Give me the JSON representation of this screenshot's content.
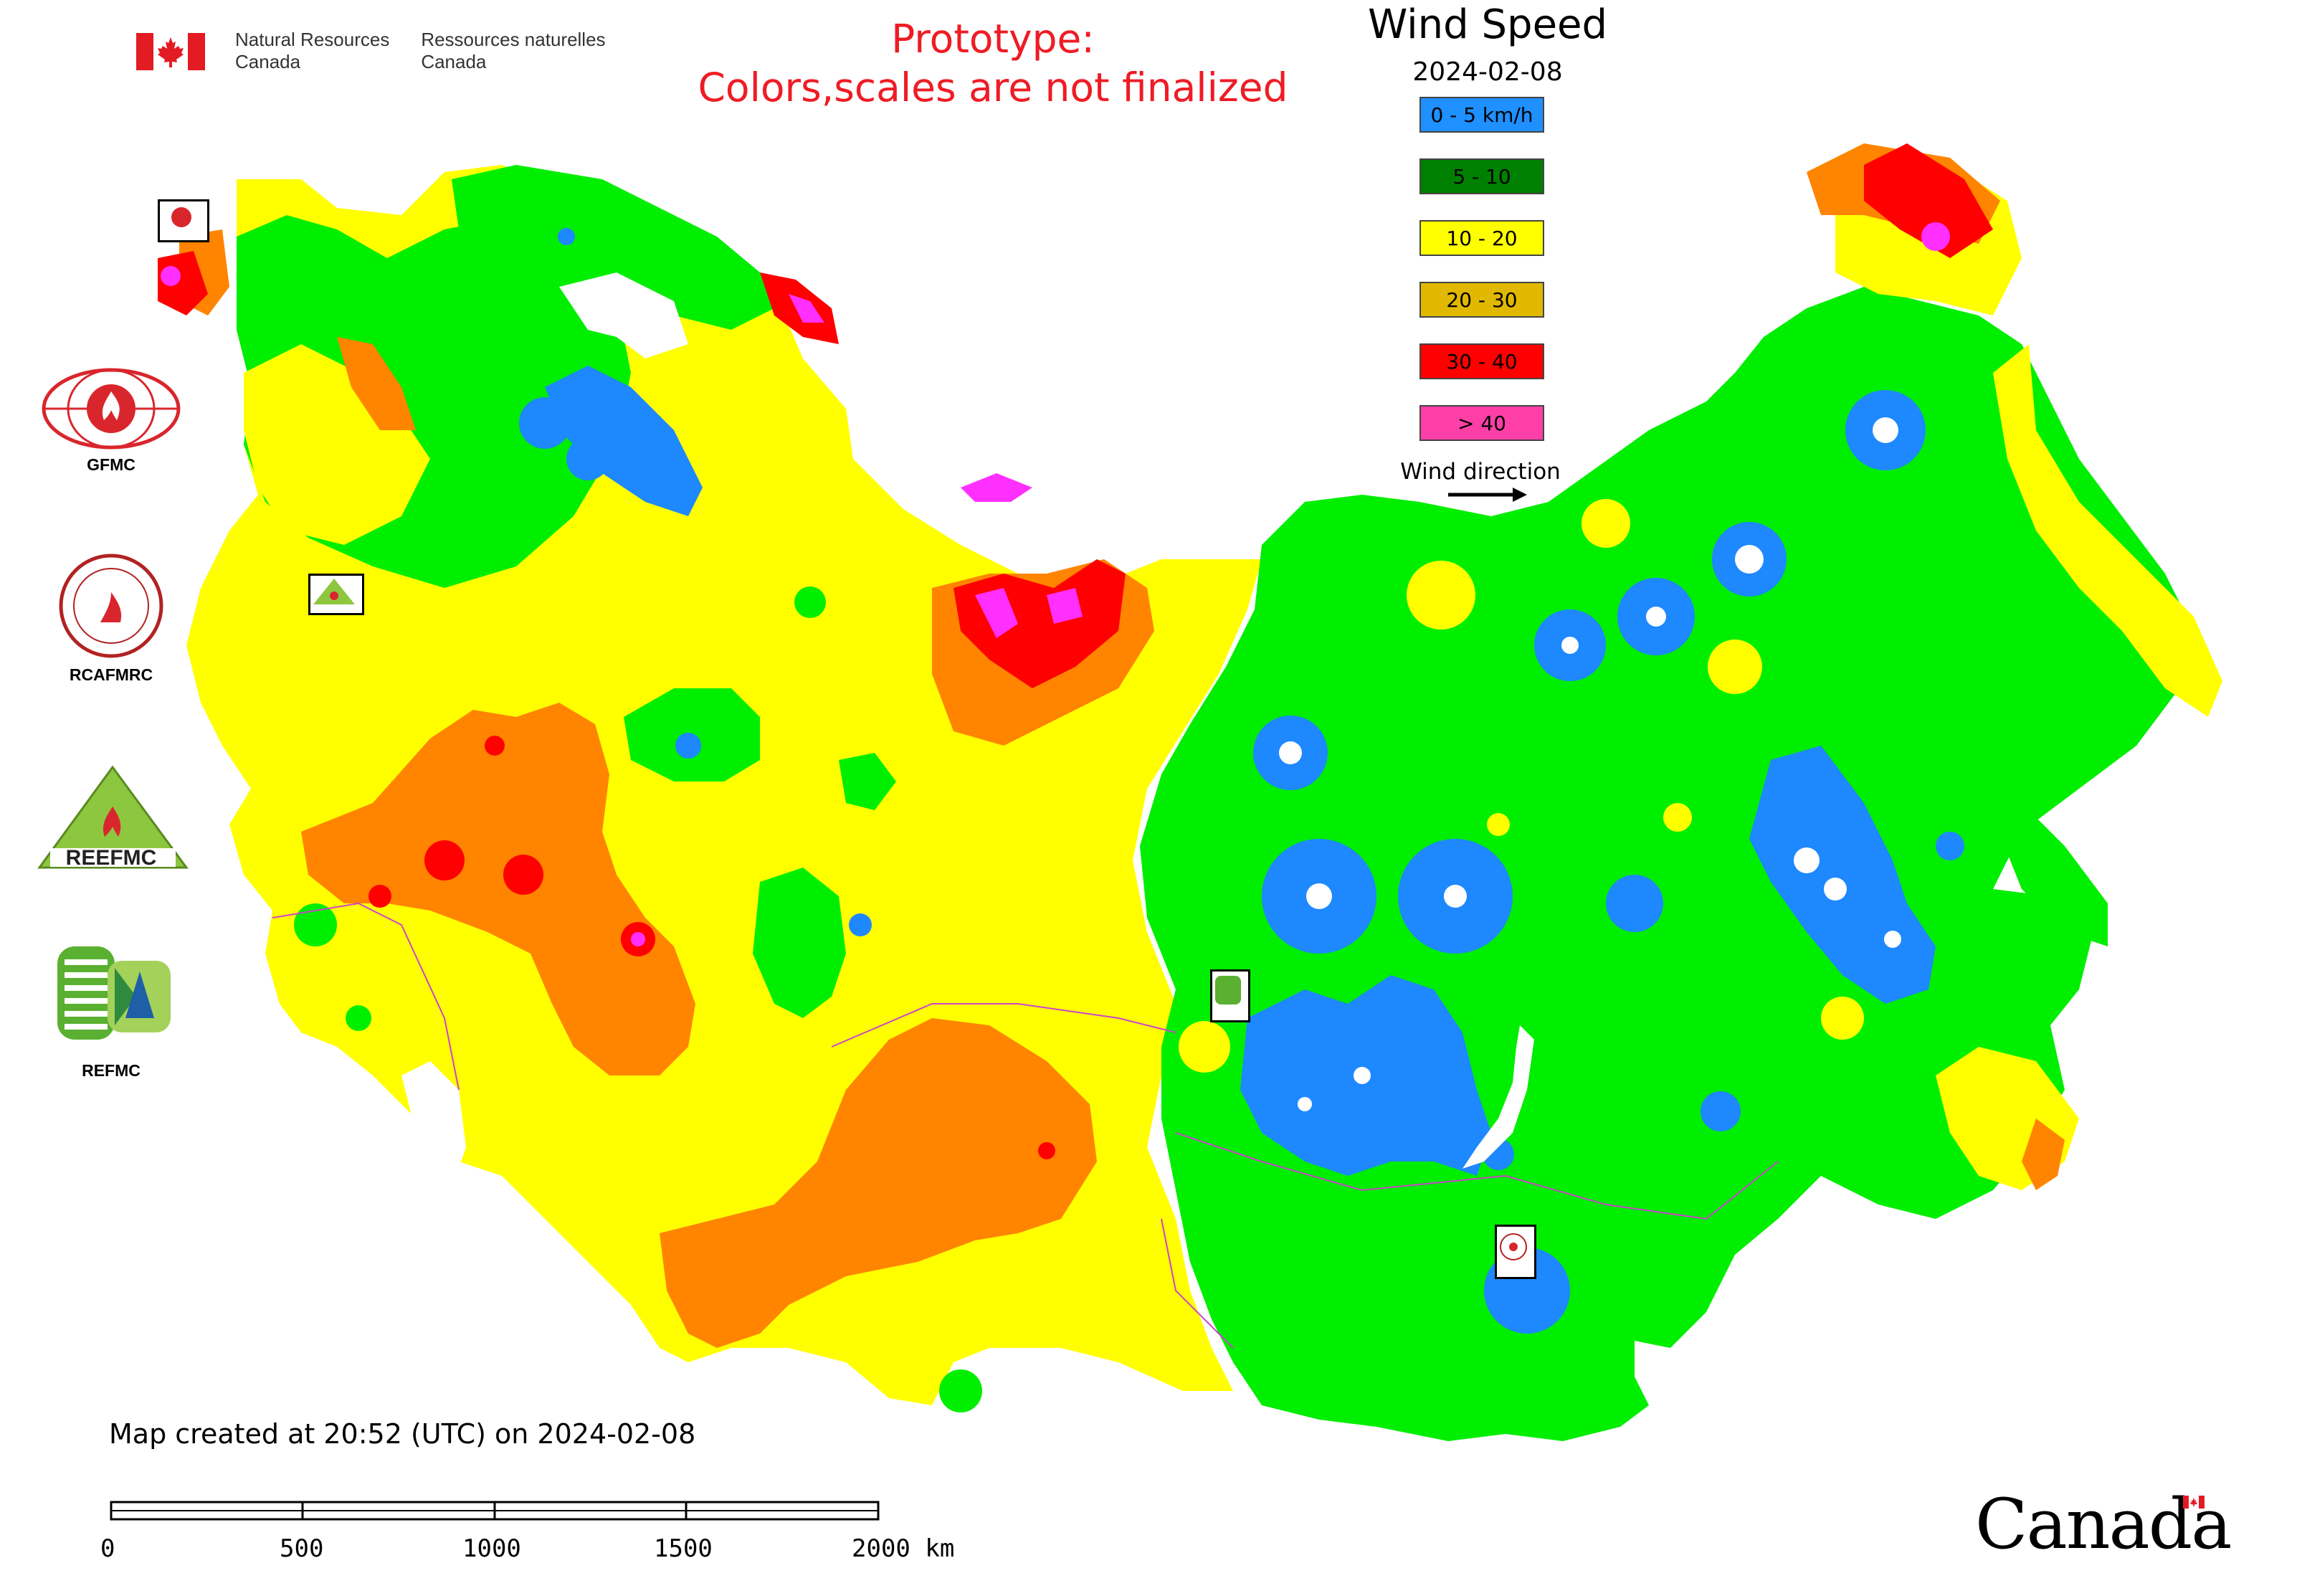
{
  "header": {
    "agency_en": "Natural Resources\nCanada",
    "agency_en_line1": "Natural Resources",
    "agency_en_line2": "Canada",
    "agency_fr_line1": "Ressources naturelles",
    "agency_fr_line2": "Canada",
    "prototype_line1": "Prototype:",
    "prototype_line2": "Colors,scales are not finalized",
    "prototype_color": "#ee1c25"
  },
  "map": {
    "title": "Wind Speed",
    "date": "2024-02-08",
    "legend": [
      {
        "label": "0 - 5 km/h",
        "color": "#1e90ff"
      },
      {
        "label": "5 - 10",
        "color": "#008000"
      },
      {
        "label": "10 - 20",
        "color": "#ffff00"
      },
      {
        "label": "20 - 30",
        "color": "#e0b800"
      },
      {
        "label": "30 - 40",
        "color": "#ff0000"
      },
      {
        "label": "> 40",
        "color": "#ff3fa8"
      }
    ],
    "wind_direction_label": "Wind direction",
    "zone_colors": {
      "bright_green": "#00ee00",
      "yellow": "#ffff00",
      "orange": "#ff8400",
      "red": "#ff0000",
      "magenta": "#ff30ff",
      "blue": "#1e88ff",
      "border": "#cc44cc"
    }
  },
  "partners": [
    {
      "label": "GFMC",
      "icon": "gfmc-logo-icon"
    },
    {
      "label": "RCAFMRC",
      "icon": "rcafmrc-logo-icon"
    },
    {
      "label": "REEFMC",
      "icon": "reefmc-logo-icon"
    },
    {
      "label": "REFMC",
      "icon": "refmc-logo-icon"
    }
  ],
  "footer": {
    "created_text": "Map created at 20:52 (UTC) on 2024-02-08",
    "scale_labels": [
      "0",
      "500",
      "1000",
      "1500",
      "2000 km"
    ],
    "canada_wordmark": "Canada"
  }
}
